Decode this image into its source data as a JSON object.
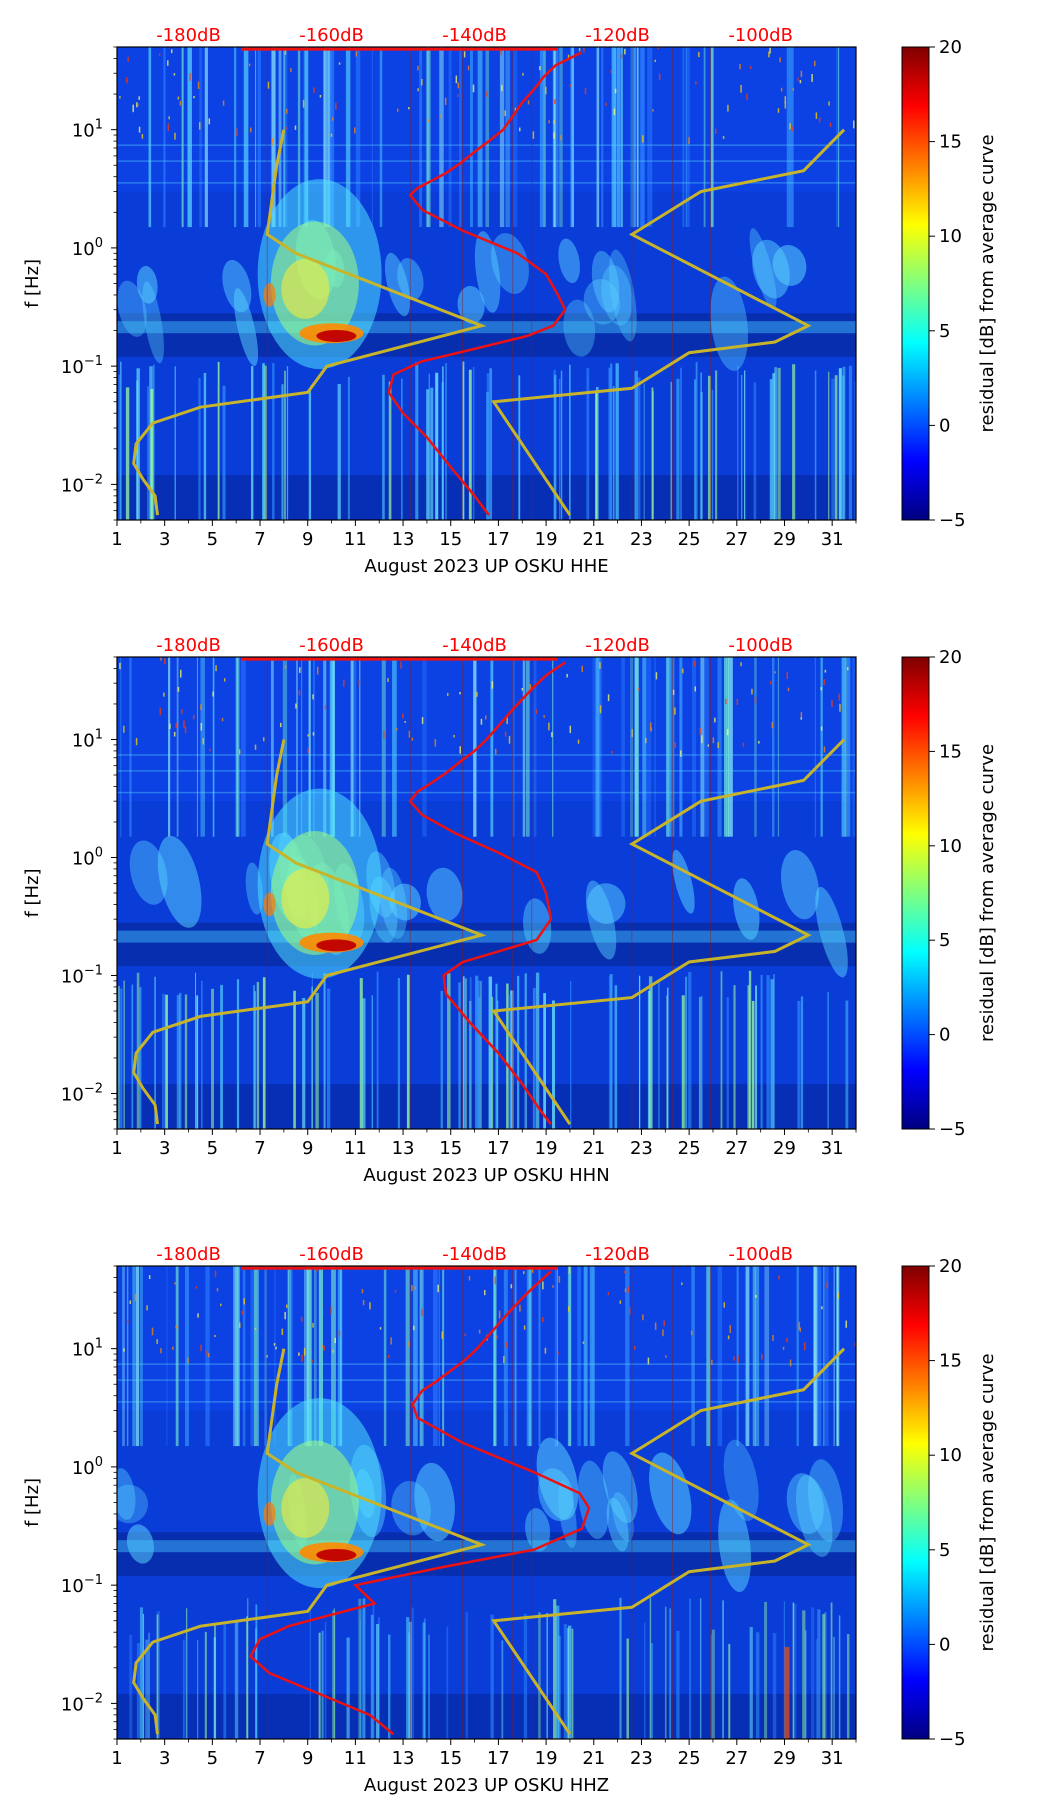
{
  "chart_data": [
    {
      "type": "heatmap",
      "title": "",
      "xlabel": "August 2023 UP OSKU  HHE",
      "ylabel": "f [Hz]",
      "xlim": [
        1,
        32
      ],
      "ylim": [
        0.005,
        50
      ],
      "yscale": "log",
      "xticks": [
        1,
        3,
        5,
        7,
        9,
        11,
        13,
        15,
        17,
        19,
        21,
        23,
        25,
        27,
        29,
        31
      ],
      "yticks": [
        {
          "value": 0.01,
          "base": "10",
          "exp": "−2"
        },
        {
          "value": 0.1,
          "base": "10",
          "exp": "−1"
        },
        {
          "value": 1,
          "base": "10",
          "exp": "0"
        },
        {
          "value": 10,
          "base": "10",
          "exp": "1"
        }
      ],
      "top_ticks": [
        {
          "x": 4,
          "label": "-180dB"
        },
        {
          "x": 10,
          "label": "-160dB"
        },
        {
          "x": 16,
          "label": "-140dB"
        },
        {
          "x": 22,
          "label": "-120dB"
        },
        {
          "x": 28,
          "label": "-100dB"
        }
      ],
      "colorbar": {
        "label": "residual [dB] from average curve",
        "range": [
          -5,
          20
        ],
        "ticks": [
          20,
          15,
          10,
          5,
          0,
          -5
        ],
        "tick_labels": [
          "20",
          "15",
          "10",
          "5",
          "0",
          "−5"
        ]
      },
      "red_curve": {
        "name": "average PSD curve",
        "x": [
          20.5,
          19.4,
          18.9,
          18.5,
          18.0,
          17.6,
          17.2,
          16.6,
          16.0,
          15.4,
          14.8,
          14.2,
          13.6,
          13.3,
          13.8,
          15.5,
          17.8,
          19.0,
          19.5,
          19.8,
          19.3,
          18.2,
          16.0,
          13.8,
          12.6,
          12.4,
          13.0,
          14.0,
          15.0,
          16.0,
          16.6
        ],
        "f": [
          45,
          35,
          28,
          22,
          17,
          13,
          10,
          8,
          6.5,
          5.2,
          4.3,
          3.7,
          3.2,
          2.8,
          2.1,
          1.4,
          0.9,
          0.6,
          0.4,
          0.3,
          0.22,
          0.18,
          0.14,
          0.11,
          0.085,
          0.06,
          0.04,
          0.025,
          0.014,
          0.008,
          0.0055
        ]
      },
      "yellow_curve": {
        "name": "noise model",
        "x": [
          31.5,
          29.8,
          25.5,
          22.6,
          30.0,
          28.6,
          25.0,
          22.6,
          16.8,
          20.0
        ],
        "f": [
          10,
          4.5,
          3.0,
          1.3,
          0.22,
          0.16,
          0.13,
          0.065,
          0.05,
          0.0055
        ]
      },
      "yellow_curve_left": {
        "name": "noise model",
        "x": [
          8.0,
          7.7,
          7.3,
          8.5,
          16.3,
          9.8,
          9.0,
          4.5,
          2.5,
          1.8,
          1.7,
          2.1,
          2.6,
          2.7
        ],
        "f": [
          10,
          5.0,
          1.3,
          0.9,
          0.22,
          0.1,
          0.06,
          0.045,
          0.033,
          0.022,
          0.015,
          0.011,
          0.008,
          0.0055
        ]
      }
    },
    {
      "type": "heatmap",
      "title": "",
      "xlabel": "August 2023 UP OSKU  HHN",
      "ylabel": "f [Hz]",
      "xlim": [
        1,
        32
      ],
      "ylim": [
        0.005,
        50
      ],
      "yscale": "log",
      "xticks": [
        1,
        3,
        5,
        7,
        9,
        11,
        13,
        15,
        17,
        19,
        21,
        23,
        25,
        27,
        29,
        31
      ],
      "yticks": [
        {
          "value": 0.01,
          "base": "10",
          "exp": "−2"
        },
        {
          "value": 0.1,
          "base": "10",
          "exp": "−1"
        },
        {
          "value": 1,
          "base": "10",
          "exp": "0"
        },
        {
          "value": 10,
          "base": "10",
          "exp": "1"
        }
      ],
      "top_ticks": [
        {
          "x": 4,
          "label": "-180dB"
        },
        {
          "x": 10,
          "label": "-160dB"
        },
        {
          "x": 16,
          "label": "-140dB"
        },
        {
          "x": 22,
          "label": "-120dB"
        },
        {
          "x": 28,
          "label": "-100dB"
        }
      ],
      "colorbar": {
        "label": "residual [dB] from average curve",
        "range": [
          -5,
          20
        ],
        "ticks": [
          20,
          15,
          10,
          5,
          0,
          -5
        ],
        "tick_labels": [
          "20",
          "15",
          "10",
          "5",
          "0",
          "−5"
        ]
      },
      "red_curve": {
        "name": "average PSD curve",
        "x": [
          19.8,
          19.0,
          18.5,
          18.0,
          17.5,
          17.0,
          16.5,
          16.0,
          15.4,
          14.8,
          14.2,
          13.6,
          13.3,
          13.8,
          15.2,
          17.0,
          18.6,
          19.0,
          19.2,
          18.6,
          17.0,
          15.5,
          14.7,
          14.8,
          15.8,
          17.0,
          18.0,
          18.8,
          19.2
        ],
        "f": [
          45,
          35,
          28,
          22,
          17,
          13,
          10,
          8,
          6.5,
          5.2,
          4.3,
          3.6,
          3.0,
          2.3,
          1.6,
          1.1,
          0.75,
          0.5,
          0.3,
          0.2,
          0.16,
          0.13,
          0.1,
          0.07,
          0.04,
          0.022,
          0.012,
          0.007,
          0.0055
        ]
      },
      "yellow_curve": {
        "name": "noise model",
        "x": [
          31.5,
          29.8,
          25.5,
          22.6,
          30.0,
          28.6,
          25.0,
          22.6,
          16.8,
          20.0
        ],
        "f": [
          10,
          4.5,
          3.0,
          1.3,
          0.22,
          0.16,
          0.13,
          0.065,
          0.05,
          0.0055
        ]
      },
      "yellow_curve_left": {
        "name": "noise model",
        "x": [
          8.0,
          7.7,
          7.3,
          8.5,
          16.3,
          9.8,
          9.0,
          4.5,
          2.5,
          1.8,
          1.7,
          2.1,
          2.6,
          2.7
        ],
        "f": [
          10,
          5.0,
          1.3,
          0.9,
          0.22,
          0.1,
          0.06,
          0.045,
          0.033,
          0.022,
          0.015,
          0.011,
          0.008,
          0.0055
        ]
      }
    },
    {
      "type": "heatmap",
      "title": "",
      "xlabel": "August 2023 UP OSKU  HHZ",
      "ylabel": "f [Hz]",
      "xlim": [
        1,
        32
      ],
      "ylim": [
        0.005,
        50
      ],
      "yscale": "log",
      "xticks": [
        1,
        3,
        5,
        7,
        9,
        11,
        13,
        15,
        17,
        19,
        21,
        23,
        25,
        27,
        29,
        31
      ],
      "yticks": [
        {
          "value": 0.01,
          "base": "10",
          "exp": "−2"
        },
        {
          "value": 0.1,
          "base": "10",
          "exp": "−1"
        },
        {
          "value": 1,
          "base": "10",
          "exp": "0"
        },
        {
          "value": 10,
          "base": "10",
          "exp": "1"
        }
      ],
      "top_ticks": [
        {
          "x": 4,
          "label": "-180dB"
        },
        {
          "x": 10,
          "label": "-160dB"
        },
        {
          "x": 16,
          "label": "-140dB"
        },
        {
          "x": 22,
          "label": "-120dB"
        },
        {
          "x": 28,
          "label": "-100dB"
        }
      ],
      "colorbar": {
        "label": "residual [dB] from average curve",
        "range": [
          -5,
          20
        ],
        "ticks": [
          20,
          15,
          10,
          5,
          0,
          -5
        ],
        "tick_labels": [
          "20",
          "15",
          "10",
          "5",
          "0",
          "−5"
        ]
      },
      "red_curve": {
        "name": "average PSD curve",
        "x": [
          19.2,
          18.6,
          18.1,
          17.6,
          17.1,
          16.6,
          16.1,
          15.6,
          15.0,
          14.4,
          13.8,
          13.4,
          13.6,
          15.5,
          18.5,
          20.4,
          20.8,
          20.5,
          18.5,
          14.5,
          11.0,
          11.8,
          9.8,
          8.2,
          7.0,
          6.6,
          7.4,
          9.5,
          11.6,
          12.6
        ],
        "f": [
          45,
          35,
          28,
          22,
          17,
          13,
          10,
          8,
          6.5,
          5.3,
          4.4,
          3.4,
          2.6,
          1.6,
          0.9,
          0.6,
          0.45,
          0.3,
          0.2,
          0.14,
          0.1,
          0.07,
          0.055,
          0.045,
          0.035,
          0.025,
          0.018,
          0.012,
          0.008,
          0.0055
        ]
      },
      "yellow_curve": {
        "name": "noise model",
        "x": [
          31.5,
          29.8,
          25.5,
          22.6,
          30.0,
          28.6,
          25.0,
          22.6,
          16.8,
          20.0
        ],
        "f": [
          10,
          4.5,
          3.0,
          1.3,
          0.22,
          0.16,
          0.13,
          0.065,
          0.05,
          0.0055
        ]
      },
      "yellow_curve_left": {
        "name": "noise model",
        "x": [
          8.0,
          7.7,
          7.3,
          8.5,
          16.3,
          9.8,
          9.0,
          4.5,
          2.5,
          1.8,
          1.7,
          2.1,
          2.6,
          2.7
        ],
        "f": [
          10,
          5.0,
          1.3,
          0.9,
          0.22,
          0.1,
          0.06,
          0.045,
          0.033,
          0.022,
          0.015,
          0.011,
          0.008,
          0.0055
        ]
      }
    }
  ],
  "colors": {
    "top_label": "#ff0000",
    "red_curve": "#ee1111",
    "yellow_curve": "#c8b42a",
    "jet": [
      "#00007f",
      "#0000ff",
      "#007fff",
      "#00ffff",
      "#7fff7f",
      "#ffff00",
      "#ff7f00",
      "#ff0000",
      "#7f0000"
    ]
  }
}
